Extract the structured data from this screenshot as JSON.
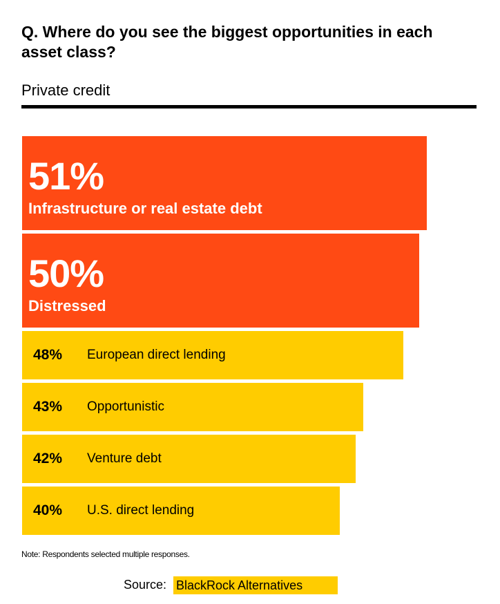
{
  "title": "Q. Where do you see the biggest opportunities in each asset class?",
  "subtitle": "Private credit",
  "colors": {
    "highlight": "#ff4a14",
    "standard": "#ffcc00",
    "rule": "#000000"
  },
  "chart_data": {
    "type": "bar",
    "orientation": "horizontal",
    "title": "Q. Where do you see the biggest opportunities in each asset class?",
    "subtitle": "Private credit",
    "categories": [
      "Infrastructure or real estate debt",
      "Distressed",
      "European direct lending",
      "Opportunistic",
      "Venture debt",
      "U.S. direct lending"
    ],
    "values": [
      51,
      50,
      48,
      43,
      42,
      40
    ],
    "value_labels": [
      "51%",
      "50%",
      "48%",
      "43%",
      "42%",
      "40%"
    ],
    "highlighted": [
      true,
      true,
      false,
      false,
      false,
      false
    ],
    "unit": "%",
    "grid": false
  },
  "note": "Note: Respondents selected multiple responses.",
  "source": {
    "label": "Source:",
    "value": "BlackRock Alternatives"
  }
}
